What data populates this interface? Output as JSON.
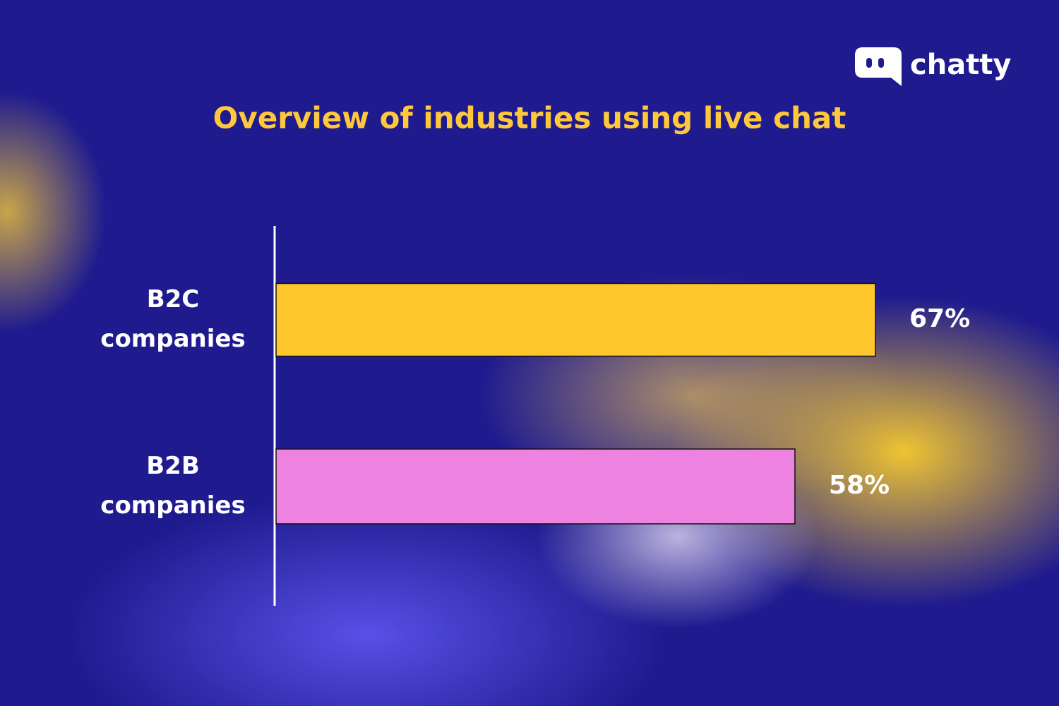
{
  "brand": "chatty",
  "chart_data": {
    "type": "bar",
    "orientation": "horizontal",
    "title": "Overview of industries using live chat",
    "categories": [
      "B2C companies",
      "B2B companies"
    ],
    "values": [
      67,
      58
    ],
    "value_labels": [
      "67%",
      "58%"
    ],
    "colors": [
      "#ffc72c",
      "#ee82e0"
    ]
  }
}
